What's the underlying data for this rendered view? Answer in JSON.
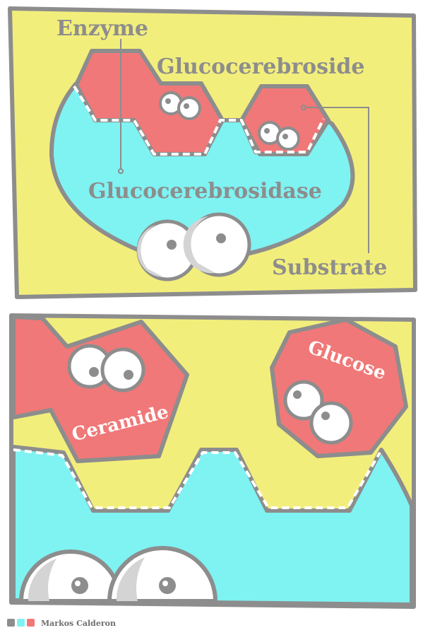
{
  "panel_top": {
    "labels": {
      "enzyme": "Enzyme",
      "glucocerebroside": "Glucocerebroside",
      "glucocerebrosidase": "Glucocerebrosidase",
      "substrate": "Substrate"
    }
  },
  "panel_bottom": {
    "labels": {
      "ceramide": "Ceramide",
      "glucose": "Glucose"
    }
  },
  "footer": {
    "credit": "Markos Calderon",
    "swatches": [
      "#8d8d8d",
      "#7ff2f2",
      "#f07878"
    ]
  },
  "colors": {
    "yellow": "#f2ee7b",
    "cyan": "#7ff2f2",
    "red": "#f07878",
    "gray": "#8d8d8d"
  }
}
